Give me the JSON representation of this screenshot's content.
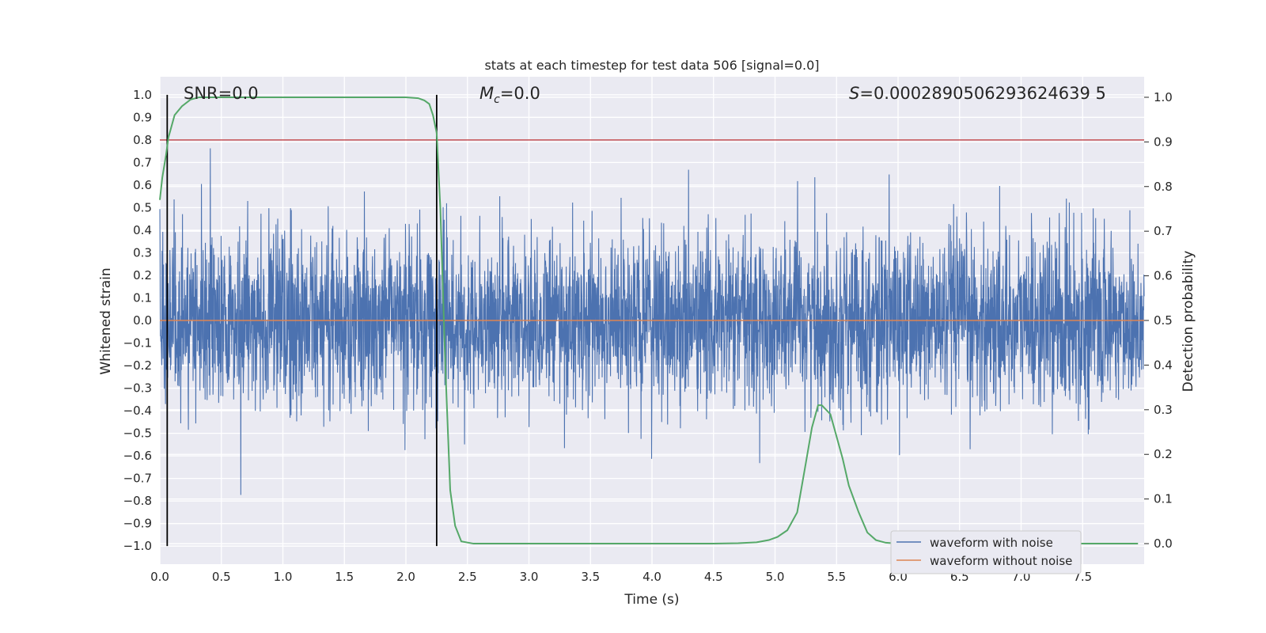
{
  "chart_data": {
    "type": "line",
    "title": "stats at each timestep for test data 506 [signal=0.0]",
    "xlabel": "Time (s)",
    "ylabel_left": "Whitened strain",
    "ylabel_right": "Detection probability",
    "xlim": [
      0.0,
      8.0
    ],
    "ylim_left": [
      -1.08,
      1.08
    ],
    "ylim_right": [
      -0.046,
      1.046
    ],
    "xticks": [
      "0.0",
      "0.5",
      "1.0",
      "1.5",
      "2.0",
      "2.5",
      "3.0",
      "3.5",
      "4.0",
      "4.5",
      "5.0",
      "5.5",
      "6.0",
      "6.5",
      "7.0",
      "7.5"
    ],
    "xtick_values": [
      0.0,
      0.5,
      1.0,
      1.5,
      2.0,
      2.5,
      3.0,
      3.5,
      4.0,
      4.5,
      5.0,
      5.5,
      6.0,
      6.5,
      7.0,
      7.5
    ],
    "yticks_left": [
      "−1.0",
      "−0.9",
      "−0.8",
      "−0.7",
      "−0.6",
      "−0.5",
      "−0.4",
      "−0.3",
      "−0.2",
      "−0.1",
      "0.0",
      "0.1",
      "0.2",
      "0.3",
      "0.4",
      "0.5",
      "0.6",
      "0.7",
      "0.8",
      "0.9",
      "1.0"
    ],
    "ytick_values_left": [
      -1.0,
      -0.9,
      -0.8,
      -0.7,
      -0.6,
      -0.5,
      -0.4,
      -0.3,
      -0.2,
      -0.1,
      0.0,
      0.1,
      0.2,
      0.3,
      0.4,
      0.5,
      0.6,
      0.7,
      0.8,
      0.9,
      1.0
    ],
    "yticks_right": [
      "0.0",
      "0.1",
      "0.2",
      "0.3",
      "0.4",
      "0.5",
      "0.6",
      "0.7",
      "0.8",
      "0.9",
      "1.0"
    ],
    "ytick_values_right": [
      0.0,
      0.1,
      0.2,
      0.3,
      0.4,
      0.5,
      0.6,
      0.7,
      0.8,
      0.9,
      1.0
    ],
    "annotations": {
      "snr": "SNR=0.0",
      "mc_symbol": "M",
      "mc_sub": "c",
      "mc_value": "=0.0",
      "s_symbol": "S",
      "s_value": "=0.0002890506293624639 5"
    },
    "threshold": {
      "value": 0.8,
      "color": "#c44e52"
    },
    "vertical_lines": [
      0.06,
      2.25
    ],
    "series": [
      {
        "name": "waveform with noise",
        "color": "#4c72b0",
        "kind": "noise",
        "std": 0.19,
        "points": 4000
      },
      {
        "name": "waveform without noise",
        "color": "#dd8452",
        "kind": "constant",
        "value": 0.0
      },
      {
        "name": "detection probability",
        "color": "#55a868",
        "axis": "right",
        "x": [
          0.0,
          0.02,
          0.05,
          0.07,
          0.12,
          0.18,
          0.25,
          0.32,
          0.4,
          0.5,
          1.0,
          1.5,
          2.0,
          2.1,
          2.15,
          2.19,
          2.22,
          2.25,
          2.28,
          2.32,
          2.36,
          2.4,
          2.45,
          2.55,
          3.0,
          3.5,
          4.0,
          4.5,
          4.7,
          4.85,
          4.95,
          5.02,
          5.1,
          5.18,
          5.25,
          5.3,
          5.35,
          5.38,
          5.45,
          5.5,
          5.55,
          5.6,
          5.68,
          5.75,
          5.82,
          5.9,
          6.0,
          6.5,
          7.0,
          7.5,
          7.95
        ],
        "y": [
          0.77,
          0.82,
          0.87,
          0.91,
          0.96,
          0.98,
          0.995,
          1.0,
          1.0,
          1.0,
          1.0,
          1.0,
          1.0,
          0.998,
          0.993,
          0.985,
          0.96,
          0.92,
          0.75,
          0.4,
          0.12,
          0.04,
          0.005,
          0.0,
          0.0,
          0.0,
          0.0,
          0.0,
          0.001,
          0.003,
          0.008,
          0.015,
          0.03,
          0.07,
          0.18,
          0.26,
          0.31,
          0.31,
          0.29,
          0.24,
          0.19,
          0.13,
          0.07,
          0.025,
          0.008,
          0.002,
          0.0,
          0.0,
          0.0,
          0.0,
          0.0
        ]
      }
    ],
    "legend": [
      "waveform with noise",
      "waveform without noise"
    ],
    "legend_position": "lower-right",
    "grid": true
  }
}
